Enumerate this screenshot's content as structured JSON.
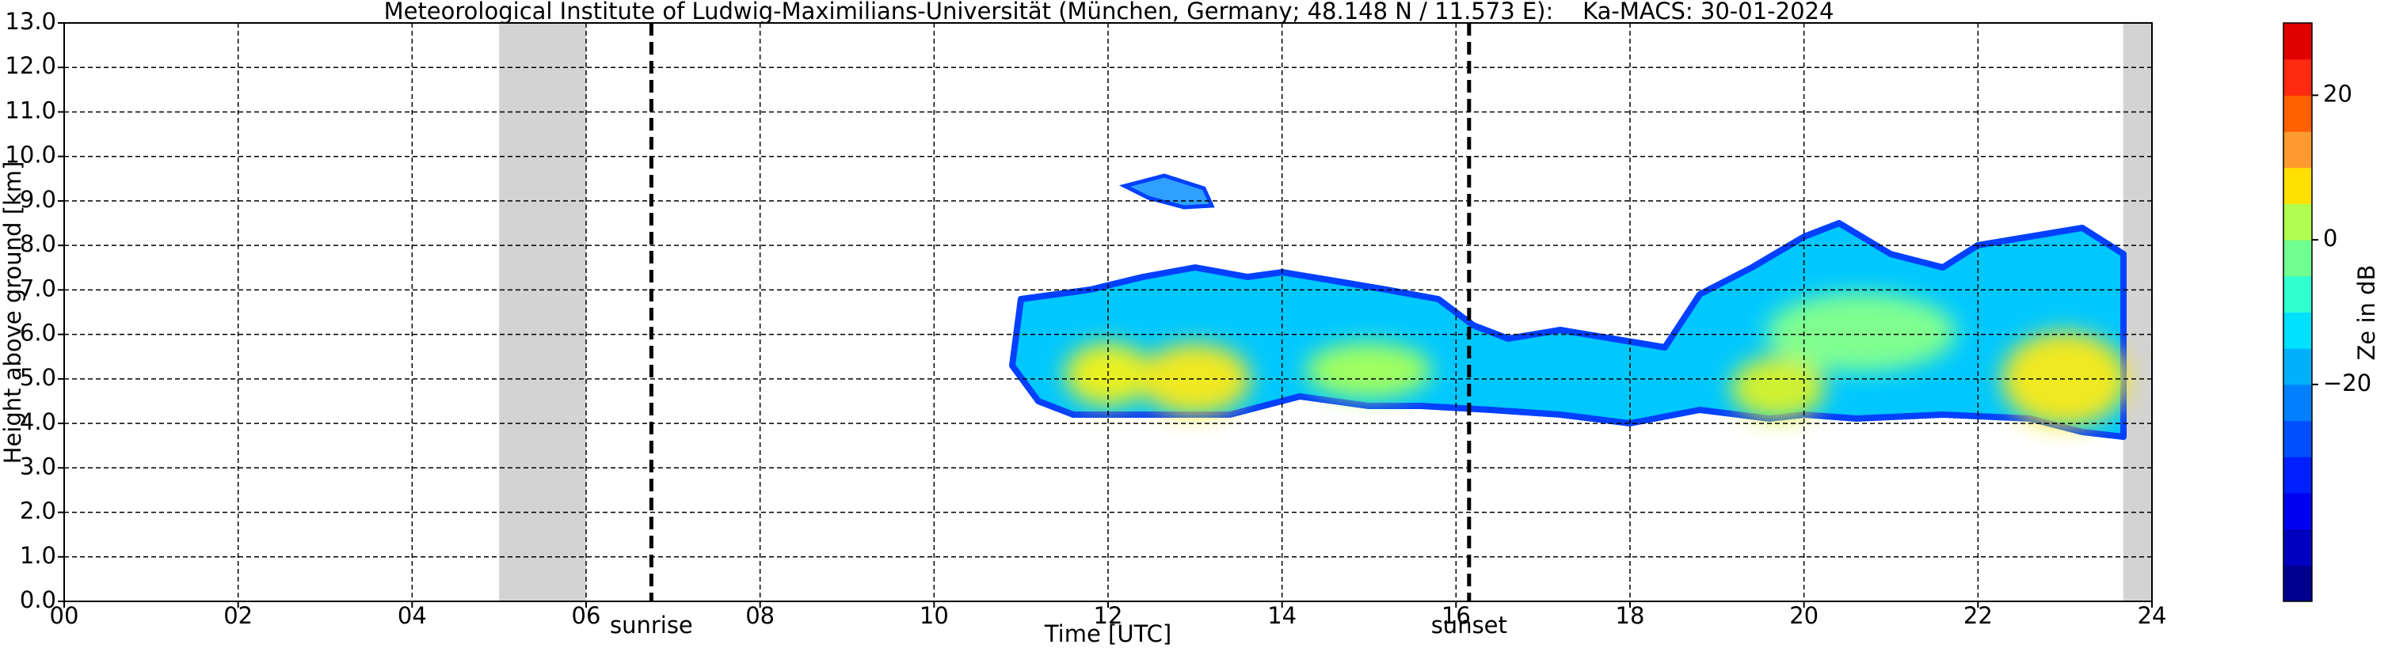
{
  "chart_data": {
    "type": "radar-timeheight",
    "title": "Meteorological Institute of Ludwig-Maximilians-Universität (München, Germany; 48.148 N / 11.573 E):    Ka-MACS: 30-01-2024",
    "xlabel": "Time [UTC]",
    "ylabel": "Height above ground [km]",
    "xlim": [
      0,
      24
    ],
    "xticks": [
      {
        "value": 0,
        "label": "00"
      },
      {
        "value": 2,
        "label": "02"
      },
      {
        "value": 4,
        "label": "04"
      },
      {
        "value": 6,
        "label": "06"
      },
      {
        "value": 8,
        "label": "08"
      },
      {
        "value": 10,
        "label": "10"
      },
      {
        "value": 12,
        "label": "12"
      },
      {
        "value": 14,
        "label": "14"
      },
      {
        "value": 16,
        "label": "16"
      },
      {
        "value": 18,
        "label": "18"
      },
      {
        "value": 20,
        "label": "20"
      },
      {
        "value": 22,
        "label": "22"
      },
      {
        "value": 24,
        "label": "24"
      }
    ],
    "ylim": [
      0,
      13
    ],
    "yticks": [
      {
        "value": 0,
        "label": "0.0"
      },
      {
        "value": 1,
        "label": "1.0"
      },
      {
        "value": 2,
        "label": "2.0"
      },
      {
        "value": 3,
        "label": "3.0"
      },
      {
        "value": 4,
        "label": "4.0"
      },
      {
        "value": 5,
        "label": "5.0"
      },
      {
        "value": 6,
        "label": "6.0"
      },
      {
        "value": 7,
        "label": "7.0"
      },
      {
        "value": 8,
        "label": "8.0"
      },
      {
        "value": 9,
        "label": "9.0"
      },
      {
        "value": 10,
        "label": "10.0"
      },
      {
        "value": 11,
        "label": "11.0"
      },
      {
        "value": 12,
        "label": "12.0"
      },
      {
        "value": 13,
        "label": "13.0"
      }
    ],
    "grid": true,
    "no_data_periods": [
      [
        5,
        6
      ],
      [
        23.67,
        24
      ]
    ],
    "no_data_color": "#d3d3d3",
    "events": [
      {
        "label": "sunrise",
        "value": 6.75
      },
      {
        "label": "sunset",
        "value": 16.15
      }
    ],
    "colorbar": {
      "label": "Ze in dB",
      "lim": [
        -50,
        30
      ],
      "ticks": [
        20,
        0,
        {
          "value": -20,
          "label": "−20"
        }
      ],
      "colors": [
        "#00008f",
        "#0000c0",
        "#0000f0",
        "#0020ff",
        "#0050ff",
        "#0080ff",
        "#00b0ff",
        "#00e0ff",
        "#30ffd0",
        "#70ff90",
        "#b0ff50",
        "#ffe000",
        "#ff9a30",
        "#ff6000",
        "#ff2a10",
        "#e00000"
      ]
    }
  }
}
